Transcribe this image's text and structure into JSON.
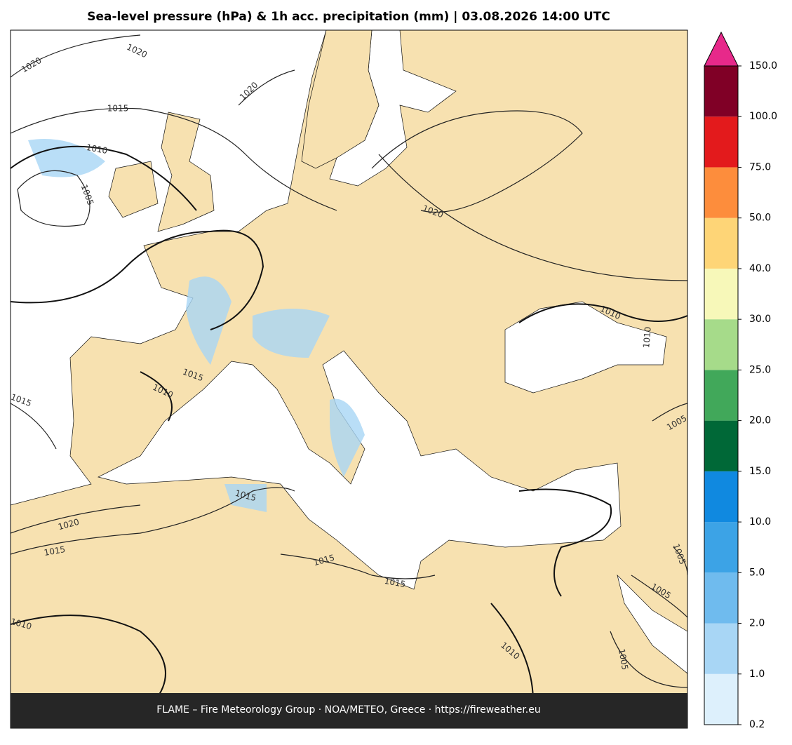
{
  "title": "Sea-level pressure (hPa) & 1h acc. precipitation (mm)  |  03.08.2026 14:00 UTC",
  "footer": "FLAME – Fire Meteorology Group · NOA/METEO, Greece · https://fireweather.eu",
  "map": {
    "contour_labels": [
      "1020",
      "1020",
      "1020",
      "1015",
      "1010",
      "1005",
      "1020",
      "1010",
      "1010",
      "1015",
      "1010",
      "1015",
      "1015",
      "1020",
      "1015",
      "1015",
      "1015",
      "1010",
      "1010",
      "1005",
      "1005",
      "1005",
      "1005"
    ]
  },
  "colorbar": {
    "ticks": [
      {
        "value": 0.2,
        "label": "0.2"
      },
      {
        "value": 1,
        "label": "1.0"
      },
      {
        "value": 2,
        "label": "2.0"
      },
      {
        "value": 5,
        "label": "5.0"
      },
      {
        "value": 10,
        "label": "10.0"
      },
      {
        "value": 15,
        "label": "15.0"
      },
      {
        "value": 20,
        "label": "20.0"
      },
      {
        "value": 25,
        "label": "25.0"
      },
      {
        "value": 30,
        "label": "30.0"
      },
      {
        "value": 40,
        "label": "40.0"
      },
      {
        "value": 50,
        "label": "50.0"
      },
      {
        "value": 75,
        "label": "75.0"
      },
      {
        "value": 100,
        "label": "100.0"
      },
      {
        "value": 150,
        "label": "150.0"
      }
    ],
    "colors": [
      "#ddf0fc",
      "#a8d6f5",
      "#6fbbee",
      "#3ca3e6",
      "#1089e0",
      "#006837",
      "#41a85a",
      "#a6db8a",
      "#f7f8b9",
      "#fed577",
      "#fd8d3c",
      "#e31a1c",
      "#800026"
    ],
    "extend_color": "#e7298a"
  }
}
